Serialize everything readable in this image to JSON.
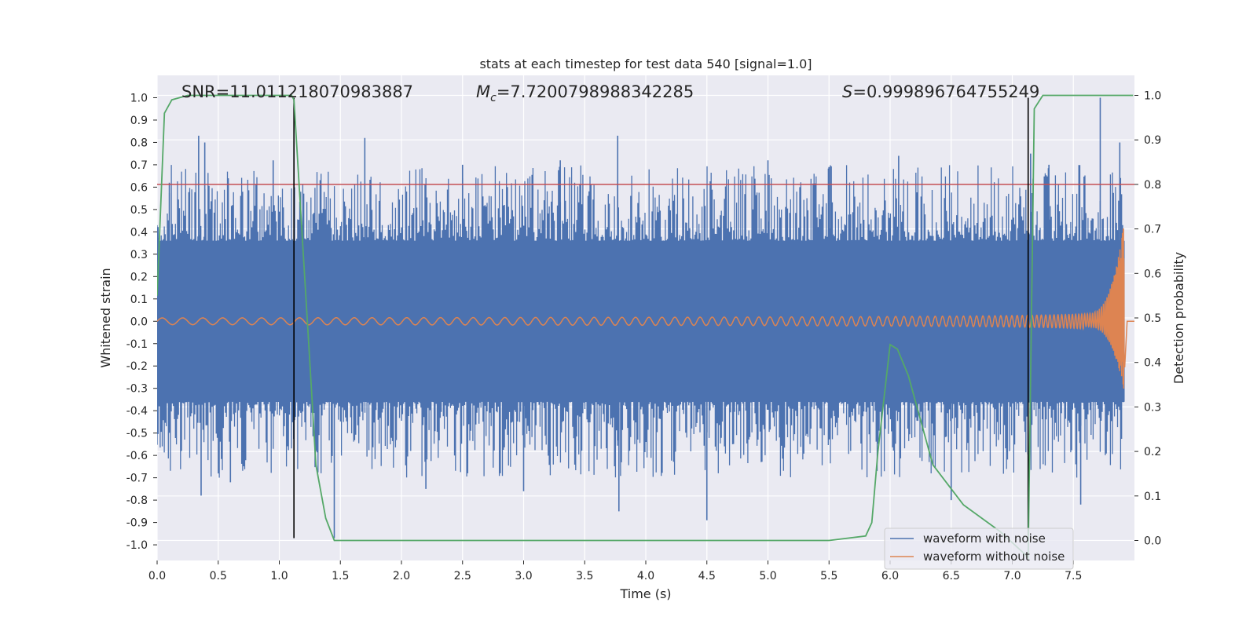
{
  "chart_data": {
    "type": "line",
    "title": "stats at each timestep for test data 540 [signal=1.0]",
    "xlabel": "Time (s)",
    "ylabel": "Whitened strain",
    "ylabel_right": "Detection probability",
    "xlim": [
      0,
      8.0
    ],
    "ylim": [
      -1.07,
      1.1
    ],
    "ylim_right": [
      -0.045,
      1.045
    ],
    "xticks": [
      0.0,
      0.5,
      1.0,
      1.5,
      2.0,
      2.5,
      3.0,
      3.5,
      4.0,
      4.5,
      5.0,
      5.5,
      6.0,
      6.5,
      7.0,
      7.5
    ],
    "xtick_labels": [
      "0.0",
      "0.5",
      "1.0",
      "1.5",
      "2.0",
      "2.5",
      "3.0",
      "3.5",
      "4.0",
      "4.5",
      "5.0",
      "5.5",
      "6.0",
      "6.5",
      "7.0",
      "7.5"
    ],
    "yticks": [
      1.0,
      0.9,
      0.8,
      0.7,
      0.6,
      0.5,
      0.4,
      0.3,
      0.2,
      0.1,
      0.0,
      -0.1,
      -0.2,
      -0.3,
      -0.4,
      -0.5,
      -0.6,
      -0.7,
      -0.8,
      -0.9,
      -1.0
    ],
    "ytick_labels": [
      "1.0",
      "0.9",
      "0.8",
      "0.7",
      "0.6",
      "0.5",
      "0.4",
      "0.3",
      "0.2",
      "0.1",
      "0.0",
      "-0.1",
      "-0.2",
      "-0.3",
      "-0.4",
      "-0.5",
      "-0.6",
      "-0.7",
      "-0.8",
      "-0.9",
      "-1.0"
    ],
    "yticks_right": [
      1.0,
      0.9,
      0.8,
      0.7,
      0.6,
      0.5,
      0.4,
      0.3,
      0.2,
      0.1,
      0.0
    ],
    "ytick_labels_right": [
      "1.0",
      "0.9",
      "0.8",
      "0.7",
      "0.6",
      "0.5",
      "0.4",
      "0.3",
      "0.2",
      "0.1",
      "0.0"
    ],
    "annotations": {
      "snr": "SNR=11.011218070983887",
      "mc_symbol": "M",
      "mc_sub": "c",
      "mc_value": "=7.7200798988342285",
      "s_symbol": "S",
      "s_value": "=0.999896764755249"
    },
    "threshold": {
      "value": 0.8,
      "color": "#c44e52"
    },
    "vertical_lines": [
      {
        "x": 1.12,
        "y_from": -0.97,
        "y_to": 1.0
      },
      {
        "x": 7.13,
        "y_from": -0.97,
        "y_to": 1.0
      }
    ],
    "noise_series": {
      "name": "waveform with noise",
      "color": "#4c72b0",
      "band": 0.36,
      "spikes": [
        {
          "x": 0.1,
          "y": 0.62
        },
        {
          "x": 0.34,
          "y": 0.83
        },
        {
          "x": 0.36,
          "y": -0.78
        },
        {
          "x": 0.39,
          "y": 0.8
        },
        {
          "x": 0.6,
          "y": -0.72
        },
        {
          "x": 0.95,
          "y": 0.72
        },
        {
          "x": 1.45,
          "y": -0.97
        },
        {
          "x": 1.7,
          "y": 0.82
        },
        {
          "x": 2.2,
          "y": -0.75
        },
        {
          "x": 2.5,
          "y": 0.7
        },
        {
          "x": 3.0,
          "y": -0.76
        },
        {
          "x": 3.3,
          "y": 0.72
        },
        {
          "x": 3.77,
          "y": 0.83
        },
        {
          "x": 3.78,
          "y": -0.85
        },
        {
          "x": 4.5,
          "y": -0.89
        },
        {
          "x": 5.0,
          "y": 0.72
        },
        {
          "x": 5.5,
          "y": 0.69
        },
        {
          "x": 6.07,
          "y": 0.74
        },
        {
          "x": 6.5,
          "y": -0.8
        },
        {
          "x": 7.15,
          "y": 0.75
        },
        {
          "x": 7.3,
          "y": 0.7
        },
        {
          "x": 7.56,
          "y": -0.82
        },
        {
          "x": 7.72,
          "y": 1.0
        },
        {
          "x": 7.88,
          "y": 0.8
        }
      ]
    },
    "chirp_series": {
      "name": "waveform without noise",
      "color": "#dd8452",
      "start_amp": 0.015,
      "end_amp_pos": 0.46,
      "end_amp_neg": -0.31,
      "t_end": 7.92
    },
    "probability_series": {
      "name": "detection probability",
      "color": "#55a868",
      "x": [
        0.0,
        0.06,
        0.12,
        0.25,
        0.5,
        0.8,
        1.1,
        1.12,
        1.25,
        1.3,
        1.38,
        1.45,
        2.0,
        2.5,
        3.0,
        3.5,
        4.0,
        4.5,
        5.0,
        5.5,
        5.8,
        5.85,
        5.9,
        6.0,
        6.06,
        6.15,
        6.35,
        6.6,
        6.9,
        7.1,
        7.13,
        7.18,
        7.25,
        7.5,
        7.75,
        7.92,
        7.99
      ],
      "y": [
        0.55,
        0.96,
        0.99,
        1.0,
        1.0,
        1.0,
        1.0,
        0.99,
        0.4,
        0.17,
        0.05,
        0.0,
        0.0,
        0.0,
        0.0,
        0.0,
        0.0,
        0.0,
        0.0,
        0.0,
        0.01,
        0.04,
        0.2,
        0.44,
        0.43,
        0.37,
        0.17,
        0.08,
        0.02,
        -0.03,
        -0.04,
        0.97,
        1.0,
        1.0,
        1.0,
        1.0,
        1.0
      ]
    },
    "legend": {
      "placement": "lower-right",
      "entries": [
        "waveform with noise",
        "waveform without noise"
      ]
    },
    "grid": true
  }
}
